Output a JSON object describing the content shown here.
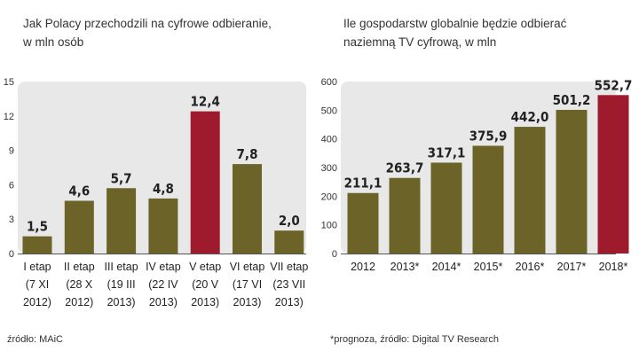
{
  "chart_data": [
    {
      "type": "bar",
      "title": [
        "Jak Polacy przechodzili na cyfrowe odbieranie,",
        "w mln osób"
      ],
      "categories": [
        [
          "I etap",
          "(7 XI",
          "2012)"
        ],
        [
          "II etap",
          "(28 X",
          "2012)"
        ],
        [
          "III etap",
          "(19 III",
          "2013)"
        ],
        [
          "IV etap",
          "(22 IV",
          "2013)"
        ],
        [
          "V etap",
          "(20 V",
          "2013)"
        ],
        [
          "VI etap",
          "(17 VI",
          "2013)"
        ],
        [
          "VII etap",
          "(23 VII",
          "2013)"
        ]
      ],
      "values": [
        1.5,
        4.6,
        5.7,
        4.8,
        12.4,
        7.8,
        2.0
      ],
      "value_labels": [
        "1,5",
        "4,6",
        "5,7",
        "4,8",
        "12,4",
        "7,8",
        "2,0"
      ],
      "highlight_index": 4,
      "ylim": [
        0,
        15
      ],
      "yticks": [
        0,
        3,
        6,
        9,
        12,
        15
      ],
      "xlabel": "",
      "ylabel": "",
      "grid": false,
      "source": "źródło: MAiC"
    },
    {
      "type": "bar",
      "title": [
        "Ile gospodarstw globalnie będzie odbierać",
        "naziemną TV cyfrową, w mln"
      ],
      "categories": [
        [
          "2012"
        ],
        [
          "2013*"
        ],
        [
          "2014*"
        ],
        [
          "2015*"
        ],
        [
          "2016*"
        ],
        [
          "2017*"
        ],
        [
          "2018*"
        ]
      ],
      "values": [
        211.1,
        263.7,
        317.1,
        375.9,
        442.0,
        501.2,
        552.7
      ],
      "value_labels": [
        "211,1",
        "263,7",
        "317,1",
        "375,9",
        "442,0",
        "501,2",
        "552,7"
      ],
      "highlight_index": 6,
      "ylim": [
        0,
        600
      ],
      "yticks": [
        0,
        100,
        200,
        300,
        400,
        500,
        600
      ],
      "xlabel": "",
      "ylabel": "",
      "grid": false,
      "source": "*prognoza, źródło: Digital TV Research"
    }
  ],
  "colors": {
    "bar": "#6b6327",
    "highlight": "#9e1b2e",
    "panel": "#e8e8e8",
    "axis": "#555555"
  }
}
